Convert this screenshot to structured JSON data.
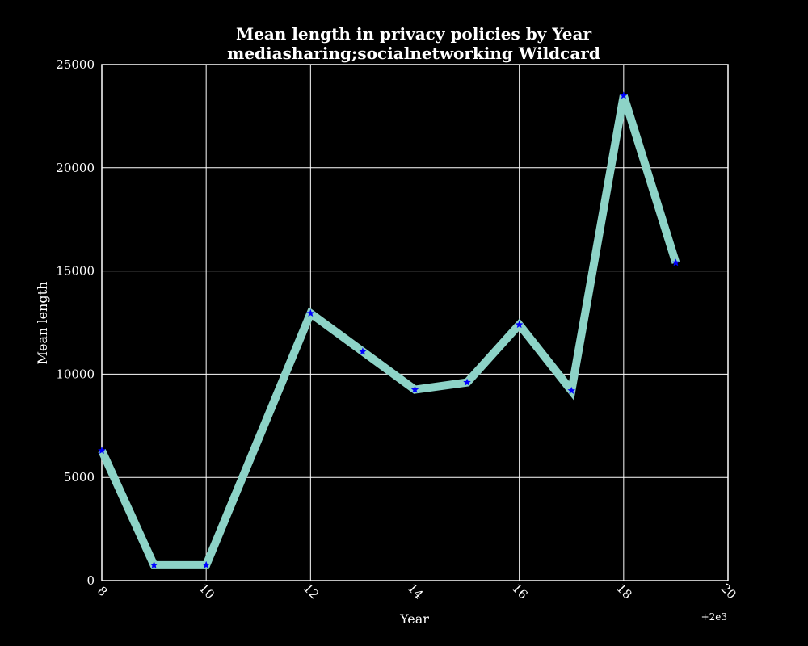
{
  "chart_data": {
    "type": "line",
    "title": "Mean length in privacy policies by Year",
    "subtitle": "mediasharing;socialnetworking Wildcard",
    "xlabel": "Year",
    "ylabel": "Mean length",
    "x_offset_label": "+2e3",
    "xlim": [
      8,
      20
    ],
    "ylim": [
      0,
      25000
    ],
    "x_ticks": [
      8,
      10,
      12,
      14,
      16,
      18,
      20
    ],
    "x_tick_labels": [
      "8",
      "10",
      "12",
      "14",
      "16",
      "18",
      "20"
    ],
    "y_ticks": [
      0,
      5000,
      10000,
      15000,
      20000,
      25000
    ],
    "y_tick_labels": [
      "0",
      "5000",
      "10000",
      "15000",
      "20000",
      "25000"
    ],
    "grid": true,
    "series": [
      {
        "x": [
          8,
          9,
          10,
          12,
          13,
          14,
          15,
          16,
          17,
          18,
          19
        ],
        "y": [
          6300,
          750,
          750,
          12950,
          11100,
          9250,
          9600,
          12400,
          9200,
          23500,
          15400
        ],
        "line_color": "#8dd3c7",
        "marker_color": "#0000ff",
        "marker": "star"
      }
    ],
    "colors": {
      "background": "#000000",
      "text": "#ffffff",
      "grid": "#ffffff"
    }
  }
}
